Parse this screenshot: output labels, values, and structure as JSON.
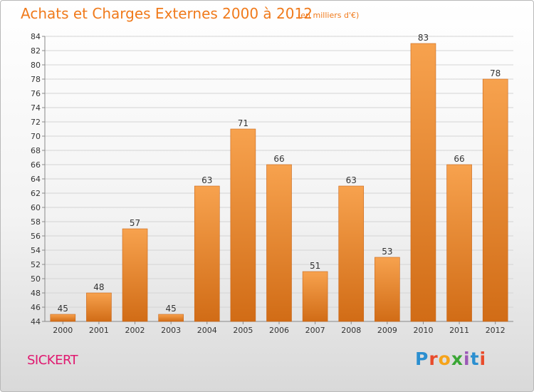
{
  "header": {
    "title": "Achats et Charges Externes 2000 à 2012",
    "subtitle": "(en milliers d'€)"
  },
  "footer": {
    "city": "SICKERT",
    "logo_text": "Proxiti"
  },
  "colors": {
    "title": "#f07a1b",
    "city": "#e0186f",
    "bar_top": "#f7a24e",
    "bar_bottom": "#d16c16",
    "logo_letters": [
      "#2b8fd0",
      "#e94b2b",
      "#f5a31a",
      "#3aa635",
      "#9b59b6",
      "#2b8fd0",
      "#e94b2b"
    ]
  },
  "chart_data": {
    "type": "bar",
    "categories": [
      "2000",
      "2001",
      "2002",
      "2003",
      "2004",
      "2005",
      "2006",
      "2007",
      "2008",
      "2009",
      "2010",
      "2011",
      "2012"
    ],
    "values": [
      45,
      48,
      57,
      45,
      63,
      71,
      66,
      51,
      63,
      53,
      83,
      66,
      78
    ],
    "title": "Achats et Charges Externes 2000 à 2012",
    "ylim": [
      44,
      84
    ],
    "yticks": [
      44,
      46,
      48,
      50,
      52,
      54,
      56,
      58,
      60,
      62,
      64,
      66,
      68,
      70,
      72,
      74,
      76,
      78,
      80,
      82,
      84
    ],
    "grid": true,
    "data_labels": true
  }
}
